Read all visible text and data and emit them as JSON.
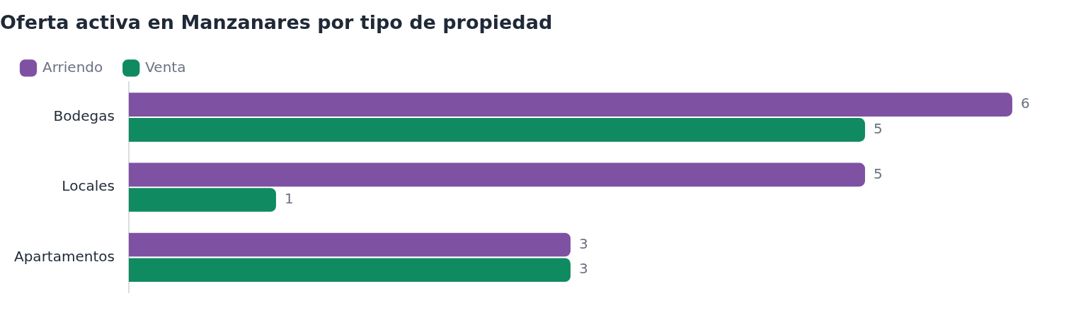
{
  "chart_data": {
    "type": "bar",
    "orientation": "horizontal",
    "title": "Oferta activa en Manzanares por tipo de propiedad",
    "categories": [
      "Bodegas",
      "Locales",
      "Apartamentos"
    ],
    "series": [
      {
        "name": "Arriendo",
        "color": "#7f51a3",
        "values": [
          6,
          5,
          3
        ]
      },
      {
        "name": "Venta",
        "color": "#108a60",
        "values": [
          5,
          1,
          3
        ]
      }
    ],
    "data_labels": true,
    "legend": "top left",
    "grid": false,
    "tick_labels": "y"
  }
}
